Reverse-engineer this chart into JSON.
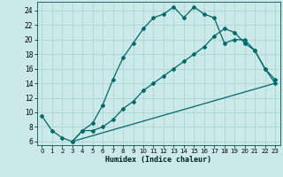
{
  "xlabel": "Humidex (Indice chaleur)",
  "bg_color": "#cce9e9",
  "grid_color": "#add4d4",
  "line_color": "#006868",
  "xlim": [
    -0.5,
    23.5
  ],
  "ylim": [
    5.5,
    25.2
  ],
  "xticks": [
    0,
    1,
    2,
    3,
    4,
    5,
    6,
    7,
    8,
    9,
    10,
    11,
    12,
    13,
    14,
    15,
    16,
    17,
    18,
    19,
    20,
    21,
    22,
    23
  ],
  "yticks": [
    6,
    8,
    10,
    12,
    14,
    16,
    18,
    20,
    22,
    24
  ],
  "curve1_x": [
    0,
    1,
    2,
    3,
    4,
    5,
    6,
    7,
    8,
    9,
    10,
    11,
    12,
    13,
    14,
    15,
    16,
    17,
    18,
    19,
    20,
    21,
    22,
    23
  ],
  "curve1_y": [
    9.5,
    7.5,
    6.5,
    6.0,
    7.5,
    8.5,
    11.0,
    14.5,
    17.5,
    19.5,
    21.5,
    23.0,
    23.5,
    24.5,
    23.0,
    24.5,
    23.5,
    23.0,
    19.5,
    20.0,
    20.0,
    18.5,
    16.0,
    14.0
  ],
  "curve2_x": [
    3,
    4,
    5,
    6,
    7,
    8,
    9,
    10,
    11,
    12,
    13,
    14,
    15,
    16,
    17,
    18,
    19,
    20,
    21,
    22,
    23
  ],
  "curve2_y": [
    6.0,
    7.5,
    7.5,
    8.0,
    9.0,
    10.5,
    11.5,
    13.0,
    14.0,
    15.0,
    16.0,
    17.0,
    18.0,
    19.0,
    20.5,
    21.5,
    21.0,
    19.5,
    18.5,
    16.0,
    14.5
  ],
  "curve3_x": [
    3,
    23
  ],
  "curve3_y": [
    6.0,
    14.0
  ]
}
